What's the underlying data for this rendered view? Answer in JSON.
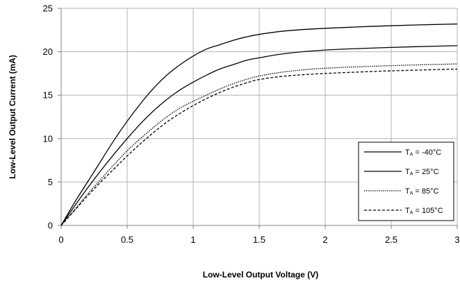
{
  "chart_data": {
    "type": "line",
    "xlabel": "Low-Level Output Voltage (V)",
    "ylabel": "Low-Level Output Current (mA)",
    "xlim": [
      0,
      3
    ],
    "ylim": [
      0,
      25
    ],
    "x_ticks": [
      "0",
      "0.5",
      "1",
      "1.5",
      "2",
      "2.5",
      "3"
    ],
    "y_ticks": [
      "0",
      "5",
      "10",
      "15",
      "20",
      "25"
    ],
    "grid": true,
    "legend_position": "bottom-right",
    "series": [
      {
        "name": "TA = -40°C",
        "label_main": "T",
        "label_sub": "A",
        "label_rest": " = -40°C",
        "dash": "solid",
        "points": [
          [
            0,
            0
          ],
          [
            0.1,
            2.6
          ],
          [
            0.2,
            5.0
          ],
          [
            0.3,
            7.4
          ],
          [
            0.4,
            9.8
          ],
          [
            0.5,
            12.0
          ],
          [
            0.6,
            14.0
          ],
          [
            0.7,
            15.8
          ],
          [
            0.8,
            17.3
          ],
          [
            0.9,
            18.5
          ],
          [
            1.0,
            19.5
          ],
          [
            1.1,
            20.3
          ],
          [
            1.2,
            20.8
          ],
          [
            1.3,
            21.3
          ],
          [
            1.4,
            21.7
          ],
          [
            1.5,
            22.0
          ],
          [
            1.7,
            22.4
          ],
          [
            2.0,
            22.7
          ],
          [
            2.5,
            23.0
          ],
          [
            3.0,
            23.2
          ]
        ]
      },
      {
        "name": "TA = 25°C",
        "label_main": "T",
        "label_sub": "A",
        "label_rest": " = 25°C",
        "dash": "solid",
        "points": [
          [
            0,
            0
          ],
          [
            0.1,
            2.2
          ],
          [
            0.2,
            4.3
          ],
          [
            0.3,
            6.3
          ],
          [
            0.4,
            8.2
          ],
          [
            0.5,
            10.0
          ],
          [
            0.6,
            11.7
          ],
          [
            0.7,
            13.2
          ],
          [
            0.8,
            14.5
          ],
          [
            0.9,
            15.6
          ],
          [
            1.0,
            16.5
          ],
          [
            1.1,
            17.3
          ],
          [
            1.2,
            18.0
          ],
          [
            1.3,
            18.5
          ],
          [
            1.4,
            19.0
          ],
          [
            1.5,
            19.3
          ],
          [
            1.7,
            19.8
          ],
          [
            2.0,
            20.2
          ],
          [
            2.5,
            20.5
          ],
          [
            3.0,
            20.7
          ]
        ]
      },
      {
        "name": "TA = 85°C",
        "label_main": "T",
        "label_sub": "A",
        "label_rest": " = 85°C",
        "dash": "dotted",
        "points": [
          [
            0,
            0
          ],
          [
            0.1,
            1.8
          ],
          [
            0.2,
            3.6
          ],
          [
            0.3,
            5.3
          ],
          [
            0.4,
            7.0
          ],
          [
            0.5,
            8.6
          ],
          [
            0.6,
            10.0
          ],
          [
            0.7,
            11.3
          ],
          [
            0.8,
            12.5
          ],
          [
            0.9,
            13.5
          ],
          [
            1.0,
            14.3
          ],
          [
            1.1,
            15.0
          ],
          [
            1.2,
            15.7
          ],
          [
            1.3,
            16.3
          ],
          [
            1.4,
            16.8
          ],
          [
            1.5,
            17.2
          ],
          [
            1.7,
            17.7
          ],
          [
            2.0,
            18.1
          ],
          [
            2.5,
            18.4
          ],
          [
            3.0,
            18.6
          ]
        ]
      },
      {
        "name": "TA = 105°C",
        "label_main": "T",
        "label_sub": "A",
        "label_rest": " = 105°C",
        "dash": "dashed",
        "points": [
          [
            0,
            0
          ],
          [
            0.1,
            1.7
          ],
          [
            0.2,
            3.4
          ],
          [
            0.3,
            5.0
          ],
          [
            0.4,
            6.5
          ],
          [
            0.5,
            8.0
          ],
          [
            0.6,
            9.4
          ],
          [
            0.7,
            10.7
          ],
          [
            0.8,
            11.9
          ],
          [
            0.9,
            12.9
          ],
          [
            1.0,
            13.8
          ],
          [
            1.1,
            14.6
          ],
          [
            1.2,
            15.3
          ],
          [
            1.3,
            15.9
          ],
          [
            1.4,
            16.4
          ],
          [
            1.5,
            16.8
          ],
          [
            1.7,
            17.2
          ],
          [
            2.0,
            17.5
          ],
          [
            2.5,
            17.8
          ],
          [
            3.0,
            18.0
          ]
        ]
      }
    ]
  }
}
